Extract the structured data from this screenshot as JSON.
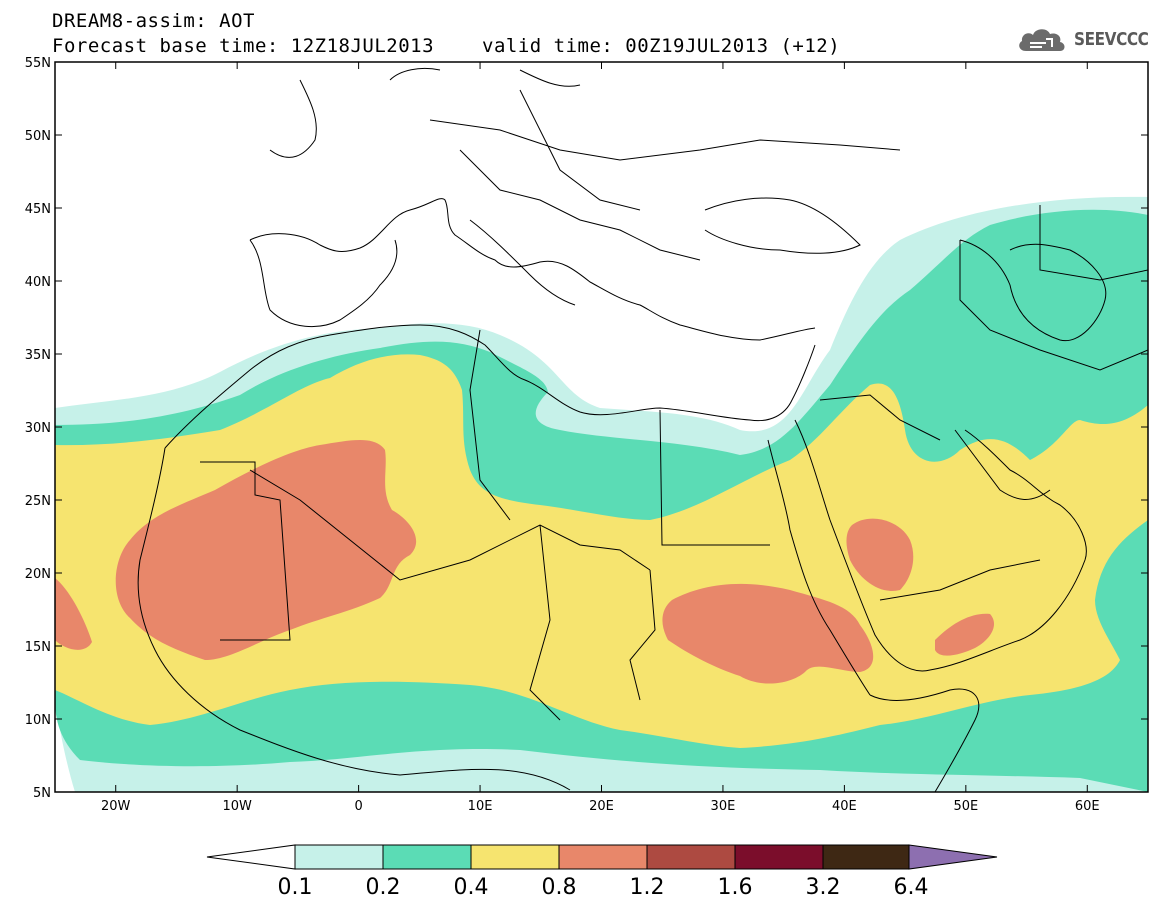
{
  "header": {
    "title": "DREAM8-assim: AOT",
    "base_time": "Forecast base time: 12Z18JUL2013",
    "valid_time": "valid time: 00Z19JUL2013 (+12)"
  },
  "logo": {
    "text": "SEEVCCC",
    "icon": "cloud-icon"
  },
  "map": {
    "lon_range": [
      -25,
      65
    ],
    "lat_range": [
      5,
      55
    ],
    "y_tick_labels": [
      "55N",
      "50N",
      "45N",
      "40N",
      "35N",
      "30N",
      "25N",
      "20N",
      "15N",
      "10N",
      "5N"
    ],
    "x_tick_labels": [
      "20W",
      "10W",
      "0",
      "10E",
      "20E",
      "30E",
      "40E",
      "50E",
      "60E"
    ]
  },
  "colorbar": {
    "labels": [
      "0.1",
      "0.2",
      "0.4",
      "0.8",
      "1.2",
      "1.6",
      "3.2",
      "6.4"
    ],
    "colors": {
      "low_arrow": "#ffffff",
      "c1": "#c6f1e9",
      "c2": "#5bdcb5",
      "c3": "#f6e46f",
      "c4": "#e8876a",
      "c5": "#ad4a41",
      "c6": "#7b0d2b",
      "c7": "#3e2814",
      "high_arrow": "#8d6fb0"
    }
  }
}
